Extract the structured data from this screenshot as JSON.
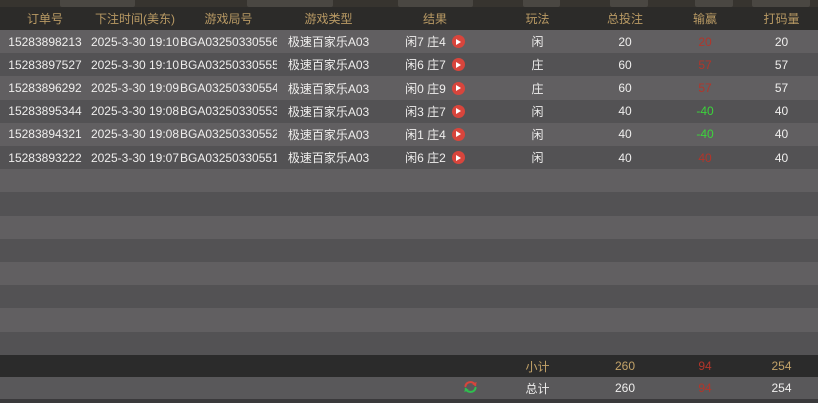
{
  "colors": {
    "red": "#b2352a",
    "green": "#3cd43c",
    "gold": "#c3a369",
    "play_button": "#d8453c",
    "row_light": "#615f61",
    "row_dark": "#535254",
    "header_bg": "#2c2b29",
    "subtotal_bg": "#2b2b2b"
  },
  "table": {
    "columns": [
      {
        "key": "order_id",
        "label": "订单号"
      },
      {
        "key": "bet_time",
        "label": "下注时间(美东)"
      },
      {
        "key": "round_id",
        "label": "游戏局号"
      },
      {
        "key": "game_type",
        "label": "游戏类型"
      },
      {
        "key": "result",
        "label": "结果"
      },
      {
        "key": "play",
        "label": "玩法"
      },
      {
        "key": "total_bet",
        "label": "总投注"
      },
      {
        "key": "win_loss",
        "label": "输赢"
      },
      {
        "key": "turnover",
        "label": "打码量"
      }
    ],
    "rows": [
      {
        "order_id": "15283898213",
        "bet_time": "2025-3-30 19:10",
        "round_id": "BGA03250330556",
        "game_type": "极速百家乐A03",
        "result": "闲7 庄4",
        "play": "闲",
        "total_bet": "20",
        "win_loss": "20",
        "win_loss_color": "red",
        "turnover": "20"
      },
      {
        "order_id": "15283897527",
        "bet_time": "2025-3-30 19:10",
        "round_id": "BGA03250330555",
        "game_type": "极速百家乐A03",
        "result": "闲6 庄7",
        "play": "庄",
        "total_bet": "60",
        "win_loss": "57",
        "win_loss_color": "red",
        "turnover": "57"
      },
      {
        "order_id": "15283896292",
        "bet_time": "2025-3-30 19:09",
        "round_id": "BGA03250330554",
        "game_type": "极速百家乐A03",
        "result": "闲0 庄9",
        "play": "庄",
        "total_bet": "60",
        "win_loss": "57",
        "win_loss_color": "red",
        "turnover": "57"
      },
      {
        "order_id": "15283895344",
        "bet_time": "2025-3-30 19:08",
        "round_id": "BGA03250330553",
        "game_type": "极速百家乐A03",
        "result": "闲3 庄7",
        "play": "闲",
        "total_bet": "40",
        "win_loss": "-40",
        "win_loss_color": "green",
        "turnover": "40"
      },
      {
        "order_id": "15283894321",
        "bet_time": "2025-3-30 19:08",
        "round_id": "BGA03250330552",
        "game_type": "极速百家乐A03",
        "result": "闲1 庄4",
        "play": "闲",
        "total_bet": "40",
        "win_loss": "-40",
        "win_loss_color": "green",
        "turnover": "40"
      },
      {
        "order_id": "15283893222",
        "bet_time": "2025-3-30 19:07",
        "round_id": "BGA03250330551",
        "game_type": "极速百家乐A03",
        "result": "闲6 庄2",
        "play": "闲",
        "total_bet": "40",
        "win_loss": "40",
        "win_loss_color": "red",
        "turnover": "40"
      }
    ],
    "empty_row_count": 8,
    "subtotal": {
      "label": "小计",
      "total_bet": "260",
      "win_loss": "94",
      "turnover": "254"
    },
    "total": {
      "label": "总计",
      "total_bet": "260",
      "win_loss": "94",
      "turnover": "254"
    }
  }
}
